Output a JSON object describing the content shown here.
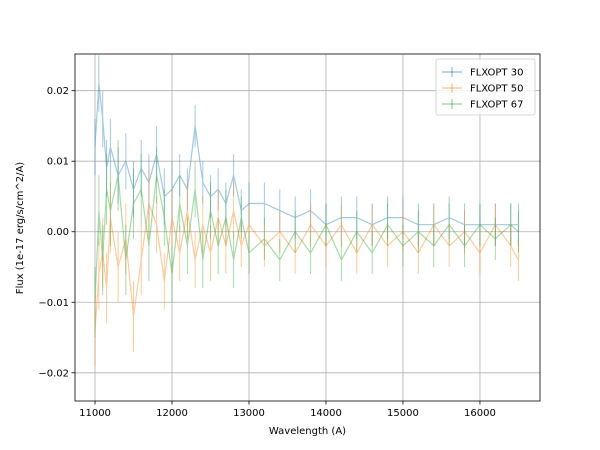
{
  "chart_data": {
    "type": "line",
    "xlabel": "Wavelength (A)",
    "ylabel": "Flux (1e-17 erg/s/cm^2/A)",
    "xlim": [
      10740,
      16780
    ],
    "ylim": [
      -0.024,
      0.0252
    ],
    "xticks": [
      11000,
      12000,
      13000,
      14000,
      15000,
      16000
    ],
    "xtick_labels": [
      "11000",
      "12000",
      "13000",
      "14000",
      "15000",
      "16000"
    ],
    "yticks": [
      -0.02,
      -0.01,
      0.0,
      0.01,
      0.02
    ],
    "ytick_labels": [
      "−0.02",
      "−0.01",
      "0.00",
      "0.01",
      "0.02"
    ],
    "grid": true,
    "legend_position": "top-right",
    "errorbar_style": true,
    "series": [
      {
        "name": "FLXOPT 30",
        "color": "#1f77b4",
        "x": [
          11000,
          11050,
          11100,
          11150,
          11200,
          11300,
          11400,
          11500,
          11600,
          11700,
          11800,
          11900,
          12000,
          12100,
          12200,
          12300,
          12400,
          12500,
          12600,
          12700,
          12800,
          12900,
          13000,
          13200,
          13400,
          13600,
          13800,
          14000,
          14200,
          14400,
          14600,
          14800,
          15000,
          15200,
          15400,
          15600,
          15800,
          16000,
          16200,
          16400,
          16500
        ],
        "values": [
          0.012,
          0.021,
          0.016,
          0.009,
          0.012,
          0.008,
          0.01,
          0.006,
          0.009,
          0.007,
          0.011,
          0.005,
          0.006,
          0.008,
          0.006,
          0.015,
          0.007,
          0.005,
          0.006,
          0.004,
          0.008,
          0.003,
          0.004,
          0.004,
          0.003,
          0.002,
          0.003,
          0.001,
          0.002,
          0.002,
          0.001,
          0.002,
          0.002,
          0.001,
          0.001,
          0.002,
          0.001,
          0.001,
          0.001,
          0.001,
          0.001
        ],
        "errors": [
          0.004,
          0.004,
          0.004,
          0.004,
          0.004,
          0.004,
          0.004,
          0.004,
          0.004,
          0.004,
          0.004,
          0.004,
          0.004,
          0.003,
          0.003,
          0.003,
          0.003,
          0.003,
          0.003,
          0.003,
          0.003,
          0.003,
          0.003,
          0.003,
          0.003,
          0.003,
          0.003,
          0.003,
          0.003,
          0.003,
          0.003,
          0.003,
          0.003,
          0.003,
          0.003,
          0.003,
          0.003,
          0.003,
          0.003,
          0.003,
          0.003
        ]
      },
      {
        "name": "FLXOPT 50",
        "color": "#ff7f0e",
        "x": [
          11000,
          11050,
          11100,
          11150,
          11200,
          11300,
          11400,
          11500,
          11600,
          11700,
          11800,
          11900,
          12000,
          12100,
          12200,
          12300,
          12400,
          12500,
          12600,
          12700,
          12800,
          12900,
          13000,
          13200,
          13400,
          13600,
          13800,
          14000,
          14200,
          14400,
          14600,
          14800,
          15000,
          15200,
          15400,
          15600,
          15800,
          16000,
          16200,
          16400,
          16500
        ],
        "values": [
          -0.014,
          -0.006,
          -0.003,
          -0.008,
          0.002,
          -0.005,
          -0.001,
          -0.012,
          -0.004,
          0.004,
          0.001,
          -0.007,
          0.002,
          -0.003,
          0.003,
          -0.004,
          0.001,
          -0.003,
          0.002,
          -0.002,
          0.003,
          -0.002,
          0.001,
          -0.002,
          0.0,
          -0.003,
          0.001,
          -0.002,
          0.001,
          -0.003,
          0.001,
          -0.002,
          0.0,
          -0.003,
          0.001,
          -0.002,
          0.0,
          -0.003,
          0.001,
          -0.002,
          -0.004
        ],
        "errors": [
          0.005,
          0.005,
          0.005,
          0.005,
          0.005,
          0.005,
          0.005,
          0.005,
          0.005,
          0.005,
          0.004,
          0.004,
          0.004,
          0.004,
          0.004,
          0.004,
          0.004,
          0.004,
          0.004,
          0.004,
          0.004,
          0.003,
          0.003,
          0.003,
          0.003,
          0.003,
          0.003,
          0.003,
          0.003,
          0.003,
          0.003,
          0.003,
          0.003,
          0.003,
          0.003,
          0.003,
          0.003,
          0.003,
          0.003,
          0.003,
          0.003
        ]
      },
      {
        "name": "FLXOPT 67",
        "color": "#2ca02c",
        "x": [
          11000,
          11050,
          11100,
          11150,
          11200,
          11300,
          11400,
          11500,
          11600,
          11700,
          11800,
          11900,
          12000,
          12100,
          12200,
          12300,
          12400,
          12500,
          12600,
          12700,
          12800,
          12900,
          13000,
          13200,
          13400,
          13600,
          13800,
          14000,
          14200,
          14400,
          14600,
          14800,
          15000,
          15200,
          15400,
          15600,
          15800,
          16000,
          16200,
          16400,
          16500
        ],
        "values": [
          -0.01,
          0.003,
          -0.004,
          0.006,
          0.003,
          0.008,
          -0.004,
          0.004,
          0.006,
          -0.002,
          0.008,
          0.002,
          -0.006,
          0.004,
          -0.002,
          0.006,
          -0.004,
          0.003,
          -0.002,
          0.002,
          -0.004,
          0.002,
          -0.003,
          -0.001,
          -0.004,
          0.0,
          -0.003,
          0.001,
          -0.004,
          0.0,
          -0.003,
          0.001,
          -0.002,
          0.0,
          -0.002,
          0.001,
          -0.002,
          0.001,
          -0.001,
          0.001,
          0.0
        ],
        "errors": [
          0.005,
          0.005,
          0.005,
          0.005,
          0.005,
          0.005,
          0.005,
          0.005,
          0.005,
          0.005,
          0.004,
          0.004,
          0.004,
          0.004,
          0.004,
          0.004,
          0.004,
          0.004,
          0.004,
          0.004,
          0.004,
          0.003,
          0.003,
          0.003,
          0.003,
          0.003,
          0.003,
          0.003,
          0.003,
          0.003,
          0.003,
          0.003,
          0.003,
          0.003,
          0.003,
          0.003,
          0.003,
          0.003,
          0.003,
          0.003,
          0.003
        ]
      }
    ]
  }
}
